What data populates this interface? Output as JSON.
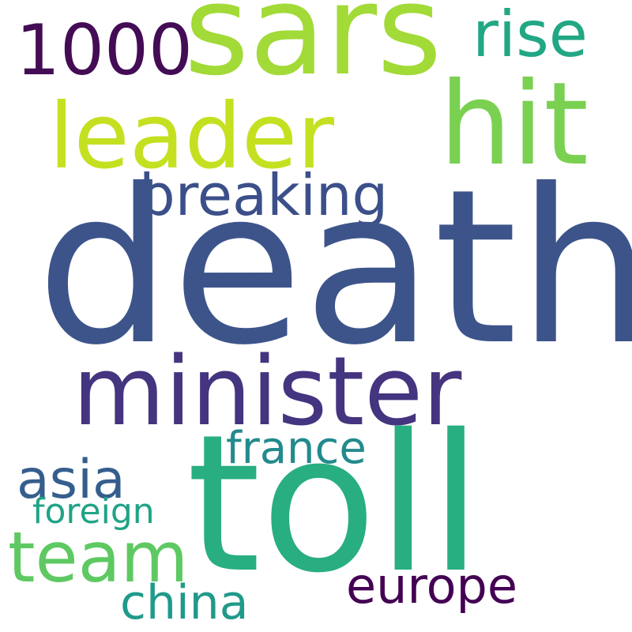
{
  "words": {
    "sars": {
      "text": "sars",
      "color": "#a2da37"
    },
    "rise": {
      "text": "rise",
      "color": "#22a785"
    },
    "n1000": {
      "text": "1000",
      "color": "#440c55"
    },
    "leader": {
      "text": "leader",
      "color": "#c5e021"
    },
    "hit": {
      "text": "hit",
      "color": "#7ad151"
    },
    "breaking": {
      "text": "breaking",
      "color": "#3b4f8a"
    },
    "death": {
      "text": "death",
      "color": "#3d548b"
    },
    "minister": {
      "text": "minister",
      "color": "#45347f"
    },
    "france": {
      "text": "france",
      "color": "#238a8d"
    },
    "asia": {
      "text": "asia",
      "color": "#355e8d"
    },
    "foreign": {
      "text": "foreign",
      "color": "#20a386"
    },
    "toll": {
      "text": "toll",
      "color": "#28ae80"
    },
    "team": {
      "text": "team",
      "color": "#5ec962"
    },
    "europe": {
      "text": "europe",
      "color": "#440154"
    },
    "china": {
      "text": "china",
      "color": "#1f9a8a"
    }
  }
}
